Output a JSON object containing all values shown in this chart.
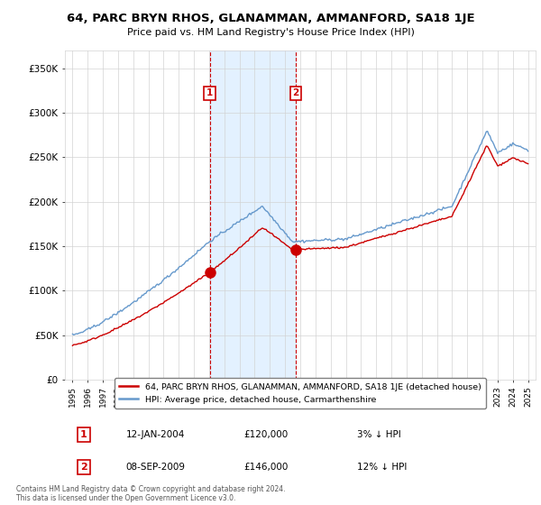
{
  "title": "64, PARC BRYN RHOS, GLANAMMAN, AMMANFORD, SA18 1JE",
  "subtitle": "Price paid vs. HM Land Registry's House Price Index (HPI)",
  "ylabel_ticks": [
    "£0",
    "£50K",
    "£100K",
    "£150K",
    "£200K",
    "£250K",
    "£300K",
    "£350K"
  ],
  "ytick_vals": [
    0,
    50000,
    100000,
    150000,
    200000,
    250000,
    300000,
    350000
  ],
  "ylim": [
    0,
    370000
  ],
  "sale1_date": "12-JAN-2004",
  "sale1_price": 120000,
  "sale1_hpi_diff": "3% ↓ HPI",
  "sale1_x": 2004.04,
  "sale2_date": "08-SEP-2009",
  "sale2_price": 146000,
  "sale2_hpi_diff": "12% ↓ HPI",
  "sale2_x": 2009.69,
  "legend_property": "64, PARC BRYN RHOS, GLANAMMAN, AMMANFORD, SA18 1JE (detached house)",
  "legend_hpi": "HPI: Average price, detached house, Carmarthenshire",
  "footnote": "Contains HM Land Registry data © Crown copyright and database right 2024.\nThis data is licensed under the Open Government Licence v3.0.",
  "hpi_color": "#6699cc",
  "property_color": "#cc0000",
  "shade_color": "#ddeeff",
  "marker_color": "#cc0000",
  "vline_color": "#cc0000",
  "xlim_start": 1994.5,
  "xlim_end": 2025.5
}
